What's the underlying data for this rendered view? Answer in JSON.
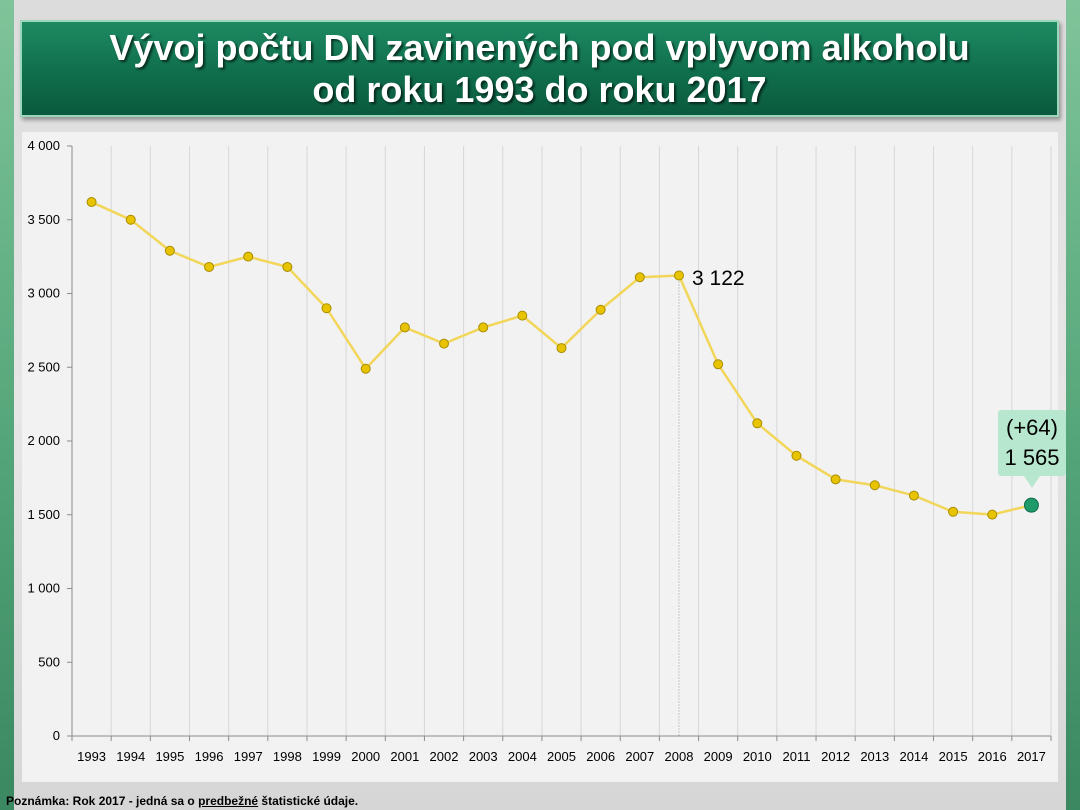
{
  "title": {
    "line1": "Vývoj počtu DN zavinených pod vplyvom alkoholu",
    "line2": "od roku 1993 do roku 2017"
  },
  "footnote": {
    "prefix": "Poznámka: Rok 2017 - jedná sa o ",
    "emph": "predbežné",
    "suffix": " štatistické údaje."
  },
  "annotations": {
    "peak_label": "3 122",
    "last_change": "(+64)",
    "last_value": "1 565"
  },
  "colors": {
    "line": "#f2d65a",
    "marker": "#e8c400",
    "last_marker": "#1f9a6a",
    "callout_bg": "#b7e8cf",
    "title_bg": "#0f6e4c"
  },
  "chart_data": {
    "type": "line",
    "title": "Vývoj počtu DN zavinených pod vplyvom alkoholu od roku 1993 do roku 2017",
    "xlabel": "",
    "ylabel": "",
    "ylim": [
      0,
      4000
    ],
    "yticks": [
      0,
      500,
      1000,
      1500,
      2000,
      2500,
      3000,
      3500,
      4000
    ],
    "ytick_labels": [
      "0",
      "500",
      "1 000",
      "1 500",
      "2 000",
      "2 500",
      "3 000",
      "3 500",
      "4 000"
    ],
    "grid": "vertical",
    "legend": "none",
    "categories": [
      "1993",
      "1994",
      "1995",
      "1996",
      "1997",
      "1998",
      "1999",
      "2000",
      "2001",
      "2002",
      "2003",
      "2004",
      "2005",
      "2006",
      "2007",
      "2008",
      "2009",
      "2010",
      "2011",
      "2012",
      "2013",
      "2014",
      "2015",
      "2016",
      "2017"
    ],
    "series": [
      {
        "values": [
          3620,
          3500,
          3290,
          3180,
          3250,
          3180,
          2900,
          2490,
          2770,
          2660,
          2770,
          2850,
          2630,
          2890,
          3110,
          3122,
          2520,
          2120,
          1900,
          1740,
          1700,
          1630,
          1520,
          1501,
          1565
        ]
      }
    ]
  }
}
